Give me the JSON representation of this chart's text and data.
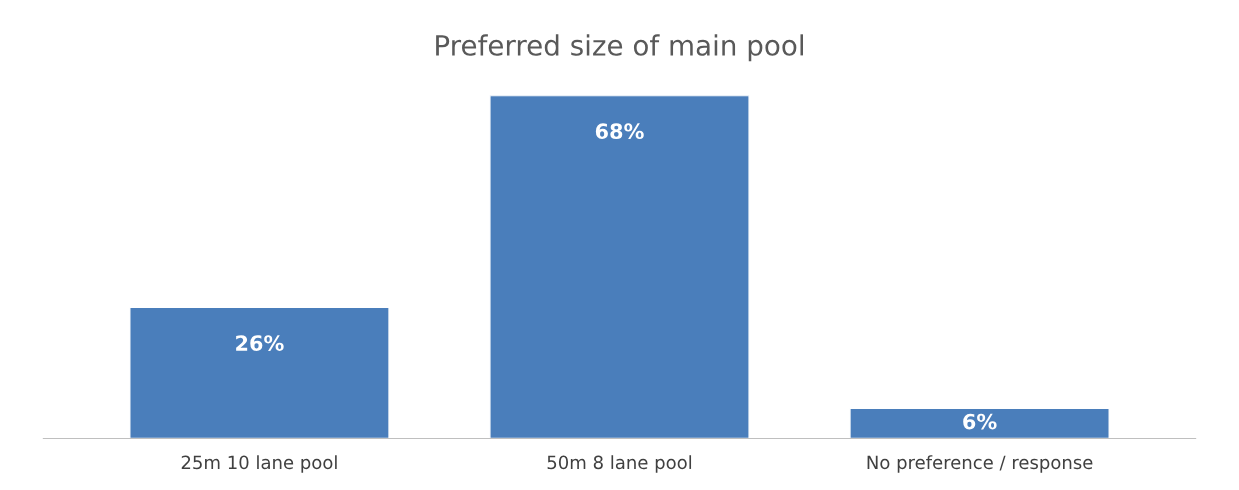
{
  "chart_data": {
    "type": "bar",
    "title": "Preferred size of main pool",
    "categories": [
      "25m 10 lane pool",
      "50m 8 lane pool",
      "No preference / response"
    ],
    "values": [
      26,
      68,
      6
    ],
    "value_labels": [
      "26%",
      "68%",
      "6%"
    ],
    "color": "#4a7ebb"
  }
}
